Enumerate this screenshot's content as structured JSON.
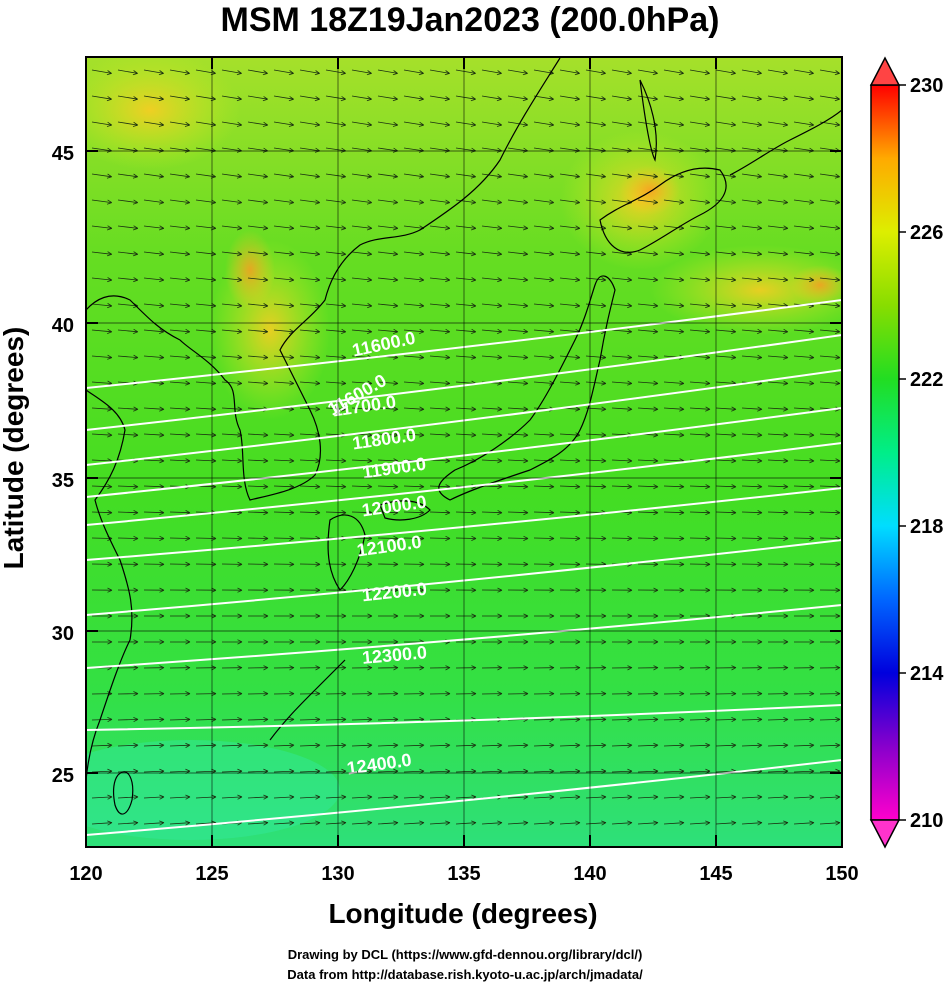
{
  "title": "MSM 18Z19Jan2023 (200.0hPa)",
  "x_axis": {
    "label": "Longitude (degrees)",
    "ticks": [
      "120",
      "125",
      "130",
      "135",
      "140",
      "145",
      "150"
    ],
    "range": [
      120,
      150
    ]
  },
  "y_axis": {
    "label": "Latitude  (degrees)",
    "ticks": [
      "25",
      "30",
      "35",
      "40",
      "45"
    ],
    "range": [
      22.4,
      47.6
    ]
  },
  "colorbar": {
    "ticks": [
      "230",
      "226",
      "222",
      "218",
      "214",
      "210"
    ],
    "range": [
      210,
      230
    ],
    "colors": [
      "#ff00cc",
      "#6a00cc",
      "#0000ff",
      "#0088ff",
      "#00eeff",
      "#00ff99",
      "#22dd22",
      "#66dd00",
      "#ddff00",
      "#ffcc00",
      "#ff6600",
      "#ff0000"
    ]
  },
  "contours": [
    {
      "label": "11600.0"
    },
    {
      "label": "11600.0"
    },
    {
      "label": "11700.0"
    },
    {
      "label": "11800.0"
    },
    {
      "label": "11900.0"
    },
    {
      "label": "12000.0"
    },
    {
      "label": "12100.0"
    },
    {
      "label": "12200.0"
    },
    {
      "label": "12300.0"
    },
    {
      "label": "12400.0"
    }
  ],
  "credits": {
    "line1": "Drawing by DCL (https://www.gfd-dennou.org/library/dcl/)",
    "line2": "Data from http://database.rish.kyoto-u.ac.jp/arch/jmadata/"
  },
  "field_colors": {
    "background": "#44dd22",
    "warm": "#ccee22",
    "hot": "#ff9922",
    "cool": "#22ee99"
  }
}
